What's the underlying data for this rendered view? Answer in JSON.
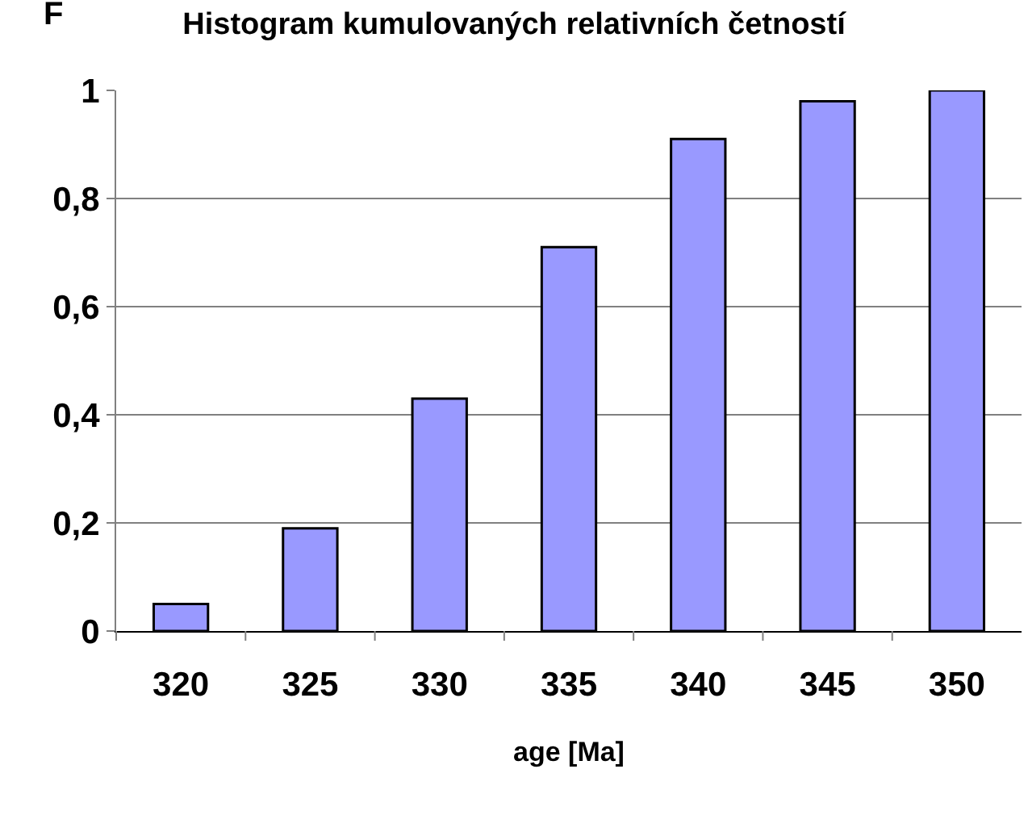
{
  "chart_data": {
    "type": "bar",
    "title": "Histogram kumulovaných relativních četností",
    "xlabel": "age [Ma]",
    "ylabel": "F",
    "categories": [
      "320",
      "325",
      "330",
      "335",
      "340",
      "345",
      "350"
    ],
    "values": [
      0.05,
      0.19,
      0.43,
      0.71,
      0.91,
      0.98,
      1
    ],
    "color": "#9999ff",
    "ylim": [
      0,
      1
    ],
    "yticks": [
      0,
      {
        "value": 0.2,
        "label": "0,2"
      },
      {
        "value": 0.4,
        "label": "0,4"
      },
      {
        "value": 0.6,
        "label": "0,6"
      },
      {
        "value": 0.8,
        "label": "0,8"
      },
      1
    ],
    "grid": "y",
    "legend": false
  }
}
